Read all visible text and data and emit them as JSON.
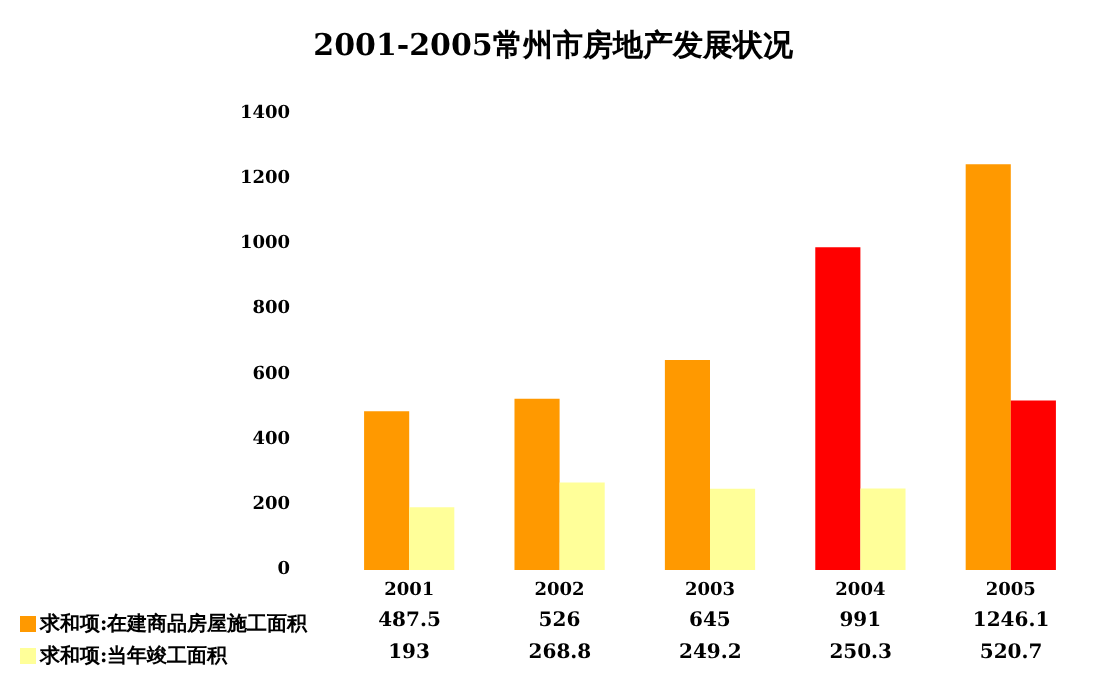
{
  "chart_data": {
    "type": "bar",
    "title": "2001-2005常州市房地产发展状况",
    "categories": [
      "2001",
      "2002",
      "2003",
      "2004",
      "2005"
    ],
    "series": [
      {
        "name": "求和项:在建商品房屋施工面积",
        "color": "#ff9900",
        "colors": [
          "#ff9900",
          "#ff9900",
          "#ff9900",
          "#ff0000",
          "#ff9900"
        ],
        "values": [
          487.5,
          526,
          645,
          991,
          1246.1
        ]
      },
      {
        "name": "求和项:当年竣工面积",
        "color": "#ffff99",
        "colors": [
          "#ffff99",
          "#ffff99",
          "#ffff99",
          "#ffff99",
          "#ff0000"
        ],
        "values": [
          193,
          268.8,
          249.2,
          250.3,
          520.7
        ]
      }
    ],
    "ylim": [
      0,
      1400
    ],
    "yticks": [
      0,
      200,
      400,
      600,
      800,
      1000,
      1200,
      1400
    ],
    "grid": false,
    "legend": "bottom left",
    "data_labels": true
  }
}
